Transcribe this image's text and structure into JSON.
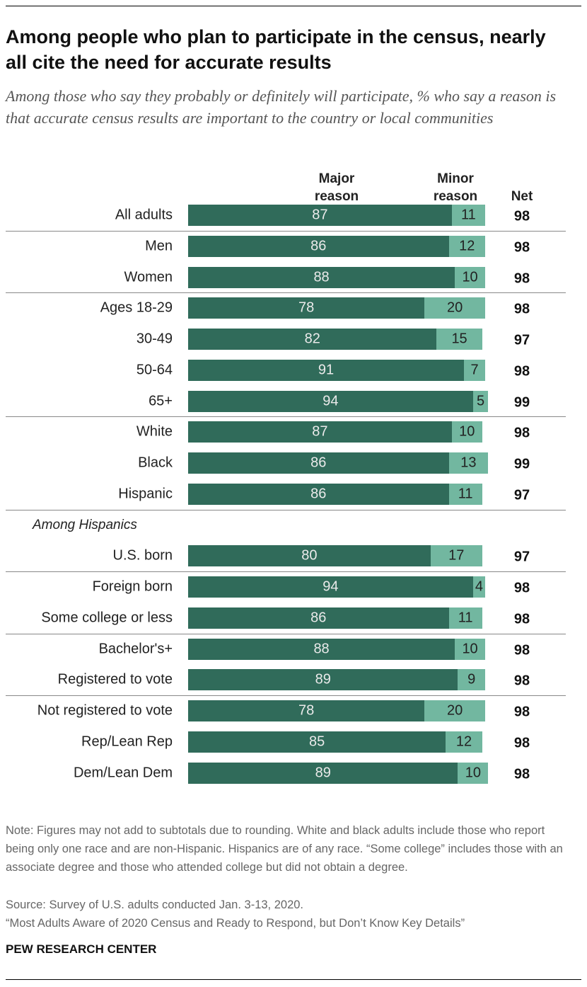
{
  "chart_data": {
    "type": "stacked-bar",
    "title": "Among people who plan to participate in the census, nearly all cite the need for accurate results",
    "subtitle": "Among those who say they probably or definitely will participate, % who say a reason is that accurate census results are important to the country or local communities",
    "categories": [
      "All adults",
      "Men",
      "Women",
      "Ages 18-29",
      "30-49",
      "50-64",
      "65+",
      "White",
      "Black",
      "Hispanic",
      "U.S. born",
      "Foreign born",
      "Some college or less",
      "Bachelor's+",
      "Registered to vote",
      "Not registered to vote",
      "Rep/Lean Rep",
      "Dem/Lean Dem"
    ],
    "subheading": "Among Hispanics",
    "series": [
      {
        "name": "Major reason",
        "color": "#306b5a",
        "values": [
          87,
          86,
          88,
          78,
          82,
          91,
          94,
          87,
          86,
          86,
          80,
          94,
          86,
          88,
          89,
          78,
          85,
          89
        ]
      },
      {
        "name": "Minor reason",
        "color": "#72b7a0",
        "values": [
          11,
          12,
          10,
          20,
          15,
          7,
          5,
          10,
          13,
          11,
          17,
          4,
          11,
          10,
          9,
          20,
          12,
          10
        ]
      }
    ],
    "net_label": "Net",
    "net": [
      98,
      98,
      98,
      98,
      97,
      98,
      99,
      98,
      99,
      97,
      97,
      98,
      98,
      98,
      98,
      98,
      98,
      98
    ],
    "note": "Note: Figures may not add to subtotals due to rounding. White and black adults include those who report being only one race and are non-Hispanic. Hispanics are of any race. “Some college” includes those with an associate degree and those who attended college but did not obtain a degree.",
    "source": "Source: Survey of U.S. adults conducted Jan. 3-13, 2020.",
    "report": "“Most Adults Aware of 2020 Census and Ready to Respond, but Don’t Know Key Details”",
    "footer": "PEW RESEARCH CENTER"
  }
}
